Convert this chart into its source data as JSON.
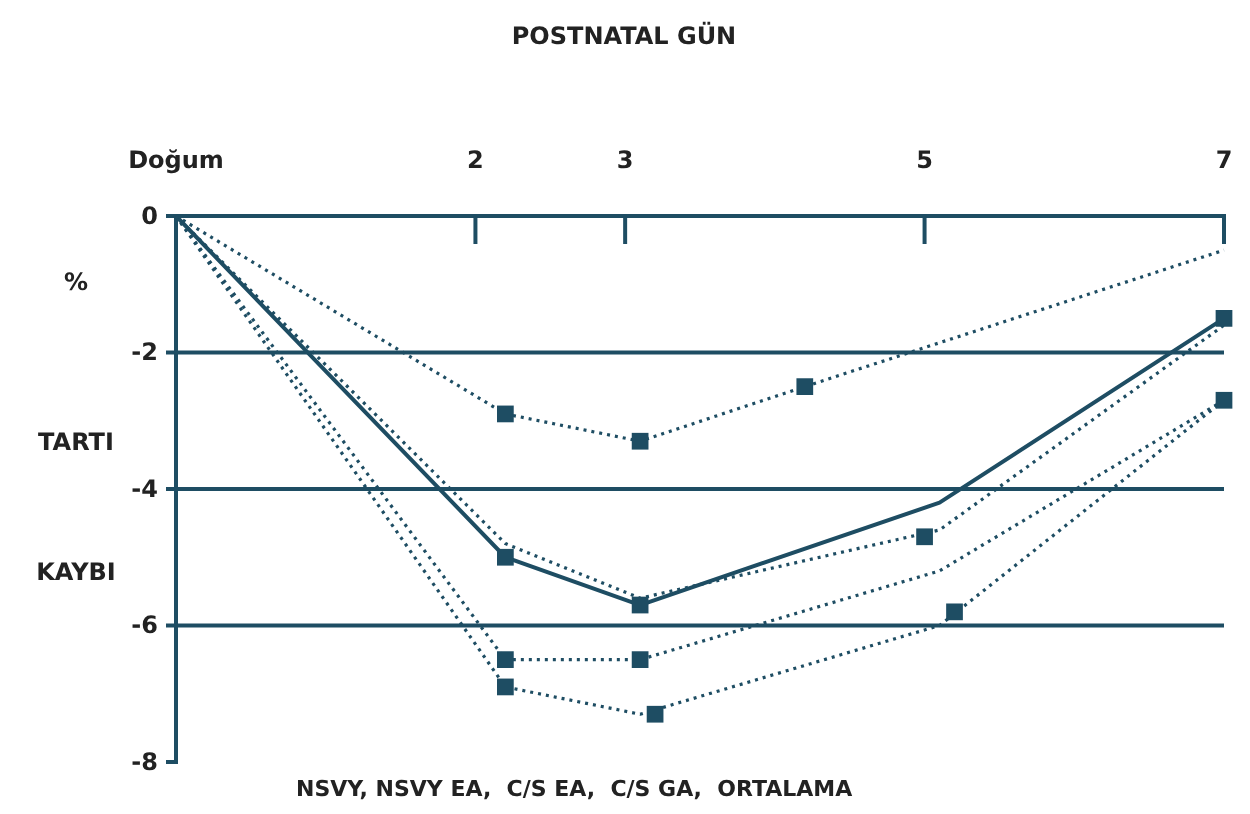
{
  "chart_data": {
    "type": "line",
    "title": "POSTNATAL GÜN",
    "ylabel": "% TARTI KAYBI",
    "annotations": [
      "NSVY, NSVY EA,  C/S EA,  C/S GA,  ORTALAMA"
    ],
    "xlim": [
      0,
      7
    ],
    "xticks": [
      {
        "value": 0,
        "label": "Doğum"
      },
      2,
      3,
      5,
      7
    ],
    "ylim": [
      -8,
      0
    ],
    "yticks": [
      0,
      -2,
      -4,
      -6,
      -8
    ],
    "grid": "y",
    "series": [
      {
        "color": "#1e4d63",
        "line_style": "dotted",
        "x": [
          0,
          2.2,
          3.1,
          4.2,
          7
        ],
        "values": [
          0,
          -2.9,
          -3.3,
          -2.5,
          -0.5
        ]
      },
      {
        "color": "#1e4d63",
        "line_style": "solid",
        "x": [
          0,
          2.2,
          3.1,
          5.1,
          7
        ],
        "values": [
          0,
          -5.0,
          -5.7,
          -4.2,
          -1.5
        ]
      },
      {
        "color": "#1e4d63",
        "line_style": "dotted",
        "x": [
          0,
          2.2,
          3.1,
          5.1,
          7
        ],
        "values": [
          0,
          -4.8,
          -5.6,
          -4.6,
          -1.6
        ]
      },
      {
        "color": "#1e4d63",
        "line_style": "dotted",
        "x": [
          0,
          2.2,
          3.1,
          5.1,
          7
        ],
        "values": [
          0,
          -6.5,
          -6.5,
          -5.2,
          -2.7
        ]
      },
      {
        "color": "#1e4d63",
        "line_style": "dotted",
        "x": [
          0,
          2.2,
          3.1,
          5.1,
          7
        ],
        "values": [
          0,
          -6.9,
          -7.3,
          -6.0,
          -2.7
        ]
      },
      {
        "type": "scatter",
        "color": "#1e4d63",
        "marker": "square",
        "x": [
          2.2,
          3.1,
          4.2,
          2.2,
          3.1,
          7,
          2.2,
          3.1,
          2.2,
          3.2,
          5.0,
          5.2,
          7
        ],
        "values": [
          -2.9,
          -3.3,
          -2.5,
          -5.0,
          -5.7,
          -1.5,
          -6.5,
          -6.5,
          -6.9,
          -7.3,
          -4.7,
          -5.8,
          -2.7
        ]
      }
    ]
  }
}
